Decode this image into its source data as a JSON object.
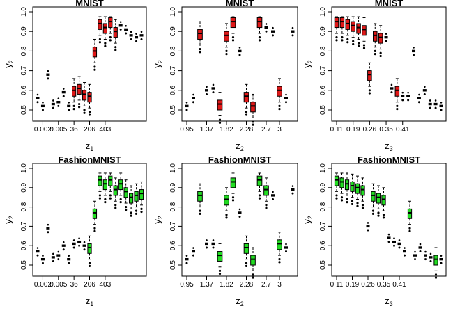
{
  "colors": {
    "red": "#e01818",
    "green": "#22dd22",
    "black": "#000000"
  },
  "chart_data": [
    {
      "type": "boxplot",
      "title": "MNIST",
      "xlabel": "z",
      "xlabel_sub": "1",
      "ylabel": "y",
      "ylabel_sub": "2",
      "ylim": [
        0.45,
        1.0
      ],
      "yticks": [
        "0.5",
        "0.6",
        "0.7",
        "0.8",
        "0.9",
        "1.0"
      ],
      "xtick_labels": [
        "0.002",
        "0.005",
        "36",
        "206",
        "403"
      ],
      "xtick_positions": [
        2,
        5,
        8,
        11,
        14
      ],
      "fill": "#e01818",
      "highlighted": [
        8,
        9,
        10,
        11,
        12,
        13,
        14,
        15,
        16
      ],
      "medians": [
        0.56,
        0.52,
        0.68,
        0.53,
        0.54,
        0.59,
        0.52,
        0.6,
        0.61,
        0.58,
        0.57,
        0.8,
        0.94,
        0.92,
        0.95,
        0.9,
        0.93,
        0.91,
        0.88,
        0.87,
        0.88
      ]
    },
    {
      "type": "boxplot",
      "title": "MNIST",
      "xlabel": "z",
      "xlabel_sub": "2",
      "ylabel": "y",
      "ylabel_sub": "2",
      "ylim": [
        0.45,
        1.0
      ],
      "yticks": [
        "0.5",
        "0.6",
        "0.7",
        "0.8",
        "0.9",
        "1.0"
      ],
      "xtick_labels": [
        "0.95",
        "1.37",
        "1.82",
        "2.28",
        "2.7",
        "3"
      ],
      "xtick_positions": [
        1,
        4,
        7,
        10,
        13,
        15
      ],
      "fill": "#e01818",
      "highlighted": [
        3,
        6,
        7,
        8,
        10,
        11,
        12,
        15
      ],
      "medians": [
        0.52,
        0.56,
        0.89,
        0.6,
        0.61,
        0.53,
        0.88,
        0.95,
        0.8,
        0.57,
        0.52,
        0.95,
        0.92,
        0.9,
        0.6,
        0.56,
        0.9
      ]
    },
    {
      "type": "boxplot",
      "title": "MNIST",
      "xlabel": "z",
      "xlabel_sub": "3",
      "ylabel": "y",
      "ylabel_sub": "2",
      "ylim": [
        0.45,
        1.0
      ],
      "yticks": [
        "0.5",
        "0.6",
        "0.7",
        "0.8",
        "0.9",
        "1.0"
      ],
      "xtick_labels": [
        "0.11",
        "0.19",
        "0.26",
        "0.35",
        "0.41"
      ],
      "xtick_positions": [
        1,
        4,
        7,
        10,
        13
      ],
      "fill": "#e01818",
      "highlighted": [
        1,
        2,
        3,
        4,
        5,
        6,
        7,
        8,
        9,
        12
      ],
      "medians": [
        0.95,
        0.95,
        0.94,
        0.93,
        0.92,
        0.91,
        0.68,
        0.88,
        0.87,
        0.87,
        0.61,
        0.6,
        0.57,
        0.57,
        0.8,
        0.56,
        0.6,
        0.53,
        0.53,
        0.52
      ]
    },
    {
      "type": "boxplot",
      "title": "FashionMNIST",
      "xlabel": "z",
      "xlabel_sub": "1",
      "ylabel": "y",
      "ylabel_sub": "2",
      "ylim": [
        0.45,
        1.0
      ],
      "yticks": [
        "0.5",
        "0.6",
        "0.7",
        "0.8",
        "0.9",
        "1.0"
      ],
      "xtick_labels": [
        "0.002",
        "0.005",
        "36",
        "206",
        "403"
      ],
      "xtick_positions": [
        2,
        5,
        8,
        11,
        14
      ],
      "fill": "#22dd22",
      "highlighted": [
        11,
        12,
        13,
        14,
        15,
        16,
        17,
        18,
        19,
        20,
        21
      ],
      "medians": [
        0.57,
        0.53,
        0.69,
        0.54,
        0.55,
        0.6,
        0.53,
        0.61,
        0.62,
        0.6,
        0.59,
        0.77,
        0.94,
        0.92,
        0.94,
        0.89,
        0.92,
        0.88,
        0.85,
        0.86,
        0.87
      ]
    },
    {
      "type": "boxplot",
      "title": "FashionMNIST",
      "xlabel": "z",
      "xlabel_sub": "2",
      "ylabel": "y",
      "ylabel_sub": "2",
      "ylim": [
        0.45,
        1.0
      ],
      "yticks": [
        "0.5",
        "0.6",
        "0.7",
        "0.8",
        "0.9",
        "1.0"
      ],
      "xtick_labels": [
        "0.95",
        "1.37",
        "1.82",
        "2.28",
        "2.7",
        "3"
      ],
      "xtick_positions": [
        1,
        4,
        7,
        10,
        13,
        15
      ],
      "fill": "#22dd22",
      "highlighted": [
        3,
        6,
        7,
        8,
        10,
        11,
        12,
        13,
        15
      ],
      "medians": [
        0.53,
        0.57,
        0.86,
        0.61,
        0.61,
        0.55,
        0.84,
        0.93,
        0.77,
        0.59,
        0.53,
        0.94,
        0.89,
        0.86,
        0.61,
        0.59,
        0.89
      ]
    },
    {
      "type": "boxplot",
      "title": "FashionMNIST",
      "xlabel": "z",
      "xlabel_sub": "3",
      "ylabel": "y",
      "ylabel_sub": "2",
      "ylim": [
        0.45,
        1.0
      ],
      "yticks": [
        "0.5",
        "0.6",
        "0.7",
        "0.8",
        "0.9",
        "1.0"
      ],
      "xtick_labels": [
        "0.11",
        "0.19",
        "0.26",
        "0.35",
        "0.41"
      ],
      "xtick_positions": [
        1,
        4,
        7,
        10,
        13
      ],
      "fill": "#22dd22",
      "highlighted": [
        1,
        2,
        3,
        4,
        5,
        6,
        8,
        9,
        10,
        15,
        20
      ],
      "medians": [
        0.94,
        0.93,
        0.92,
        0.91,
        0.9,
        0.89,
        0.7,
        0.86,
        0.85,
        0.84,
        0.64,
        0.62,
        0.61,
        0.57,
        0.77,
        0.55,
        0.59,
        0.55,
        0.54,
        0.53,
        0.53
      ]
    }
  ]
}
